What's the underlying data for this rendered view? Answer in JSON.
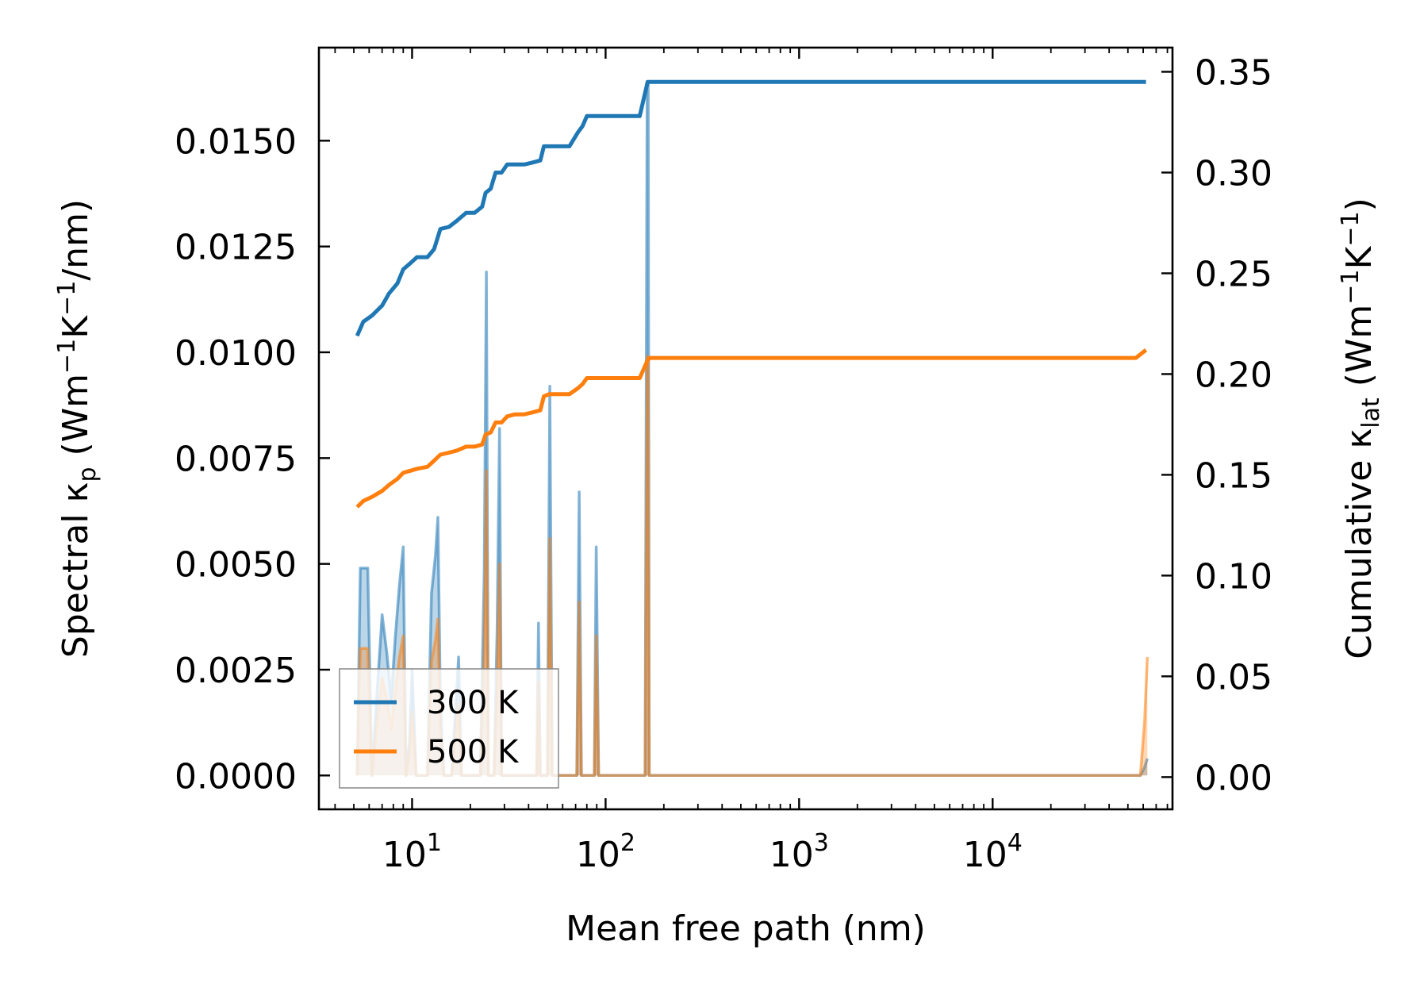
{
  "chart_data": {
    "type": "line",
    "xscale": "log",
    "xlabel": "Mean free path (nm)",
    "ylabel_left": {
      "base": "Spectral κ",
      "sub": "p",
      "unit_pre": " (Wm",
      "sup1": "−1",
      "unit_mid": "K",
      "sup2": "−1",
      "unit_post": "/nm)"
    },
    "ylabel_right": {
      "base": "Cumulative κ",
      "sub": "lat",
      "unit_pre": " (Wm",
      "sup1": "−1",
      "unit_mid": "K",
      "sup2": "−1",
      "unit_post": ")"
    },
    "xlim": [
      3.3,
      85000
    ],
    "ylim_left": [
      -0.0008,
      0.0172
    ],
    "ylim_right": [
      -0.016,
      0.362
    ],
    "x_ticks": [
      {
        "value": 10,
        "base": "10",
        "exp": "1"
      },
      {
        "value": 100,
        "base": "10",
        "exp": "2"
      },
      {
        "value": 1000,
        "base": "10",
        "exp": "3"
      },
      {
        "value": 10000,
        "base": "10",
        "exp": "4"
      }
    ],
    "y_ticks_left": [
      "0.0000",
      "0.0025",
      "0.0050",
      "0.0075",
      "0.0100",
      "0.0125",
      "0.0150"
    ],
    "y_ticks_right": [
      "0.00",
      "0.05",
      "0.10",
      "0.15",
      "0.20",
      "0.25",
      "0.30",
      "0.35"
    ],
    "legend": {
      "position": "lower-left",
      "entries": [
        "300 K",
        "500 K"
      ]
    },
    "colors": {
      "300 K": "#1f77b4",
      "500 K": "#ff7f0e"
    },
    "series": [
      {
        "name": "300 K",
        "axis": "right",
        "kind": "cumulative",
        "x": [
          5.2,
          5.6,
          6.2,
          7.0,
          7.6,
          8.4,
          9.0,
          9.8,
          10.6,
          12.0,
          13.0,
          14.0,
          15.5,
          17.0,
          19.0,
          21.0,
          23.0,
          24.0,
          25.5,
          27.0,
          29.0,
          31.0,
          34.0,
          38.0,
          42.0,
          46.0,
          48.0,
          51.0,
          54.0,
          58.0,
          65.0,
          72.0,
          76.0,
          80.0,
          88.0,
          95.0,
          120.0,
          150.0,
          165.0,
          170.0,
          180.0,
          1000.0,
          10000.0,
          55000.0,
          62000.0
        ],
        "y": [
          0.219,
          0.226,
          0.229,
          0.234,
          0.24,
          0.245,
          0.252,
          0.255,
          0.258,
          0.258,
          0.262,
          0.272,
          0.273,
          0.276,
          0.28,
          0.28,
          0.283,
          0.29,
          0.292,
          0.3,
          0.3,
          0.304,
          0.304,
          0.304,
          0.305,
          0.306,
          0.313,
          0.313,
          0.313,
          0.313,
          0.313,
          0.32,
          0.323,
          0.328,
          0.328,
          0.328,
          0.328,
          0.328,
          0.345,
          0.345,
          0.345,
          0.345,
          0.345,
          0.345,
          0.345
        ]
      },
      {
        "name": "500 K",
        "axis": "right",
        "kind": "cumulative",
        "x": [
          5.2,
          5.6,
          6.2,
          7.0,
          7.6,
          8.4,
          9.0,
          9.8,
          10.6,
          12.0,
          13.0,
          14.0,
          15.5,
          17.0,
          19.0,
          21.0,
          23.0,
          24.0,
          25.5,
          27.0,
          29.0,
          31.0,
          34.0,
          38.0,
          42.0,
          46.0,
          48.0,
          51.0,
          54.0,
          58.0,
          65.0,
          72.0,
          76.0,
          80.0,
          88.0,
          95.0,
          120.0,
          150.0,
          165.0,
          170.0,
          180.0,
          1000.0,
          10000.0,
          55000.0,
          62000.0
        ],
        "y": [
          0.134,
          0.137,
          0.139,
          0.142,
          0.145,
          0.148,
          0.151,
          0.152,
          0.153,
          0.154,
          0.157,
          0.16,
          0.161,
          0.162,
          0.164,
          0.164,
          0.165,
          0.17,
          0.171,
          0.176,
          0.176,
          0.179,
          0.18,
          0.18,
          0.181,
          0.182,
          0.189,
          0.19,
          0.19,
          0.19,
          0.19,
          0.193,
          0.195,
          0.198,
          0.198,
          0.198,
          0.198,
          0.198,
          0.207,
          0.208,
          0.208,
          0.208,
          0.208,
          0.208,
          0.212
        ]
      },
      {
        "name": "300 K",
        "axis": "left",
        "kind": "spectral",
        "x": [
          5.2,
          5.4,
          5.6,
          5.9,
          6.2,
          6.6,
          7.0,
          7.4,
          7.8,
          8.2,
          8.6,
          9.0,
          9.3,
          9.7,
          10.0,
          10.5,
          11.0,
          11.5,
          12.0,
          12.6,
          13.2,
          13.6,
          14.0,
          14.6,
          15.5,
          16.0,
          16.8,
          17.4,
          18.0,
          19.0,
          20.0,
          21.0,
          22.5,
          23.6,
          24.2,
          24.8,
          25.5,
          26.5,
          27.5,
          28.3,
          29.0,
          30.0,
          32.0,
          34.0,
          36.0,
          38.0,
          40.0,
          42.0,
          44.0,
          45.0,
          46.0,
          47.0,
          48.5,
          50.0,
          51.5,
          53.0,
          55.0,
          60.0,
          67.0,
          71.0,
          73.0,
          75.0,
          78.0,
          83.0,
          87.5,
          89.5,
          92.0,
          97.0,
          110.0,
          150.0,
          160.0,
          164.0,
          166.0,
          168.0,
          172.0,
          178.0,
          250.0,
          1000.0,
          10000.0,
          55000.0,
          58000.0,
          61000.0,
          63000.0
        ],
        "y": [
          0.0,
          0.0049,
          0.0049,
          0.0049,
          0.0,
          0.002,
          0.0038,
          0.0029,
          0.0018,
          0.0033,
          0.0045,
          0.0054,
          0.0,
          0.0008,
          0.0025,
          0.0,
          0.0,
          0.0,
          0.0,
          0.0043,
          0.0052,
          0.0061,
          0.0018,
          0.0,
          0.0,
          0.0,
          0.0016,
          0.0028,
          0.0,
          0.0,
          0.0,
          0.0,
          0.0,
          0.0048,
          0.0119,
          0.0,
          0.0,
          0.0,
          0.0034,
          0.0082,
          0.0,
          0.0,
          0.0,
          0.0,
          0.0,
          0.0,
          0.0,
          0.0,
          0.0,
          0.0036,
          0.0,
          0.0,
          0.0,
          0.0,
          0.0092,
          0.0,
          0.0,
          0.0,
          0.0,
          0.0,
          0.0067,
          0.0,
          0.0,
          0.0,
          0.0,
          0.0054,
          0.0,
          0.0,
          0.0,
          0.0,
          0.0,
          0.0164,
          0.0164,
          0.0,
          0.0,
          0.0,
          0.0,
          0.0,
          0.0,
          0.0,
          0.0,
          0.0002,
          0.0004
        ]
      },
      {
        "name": "500 K",
        "axis": "left",
        "kind": "spectral",
        "x": [
          5.2,
          5.4,
          5.6,
          5.9,
          6.2,
          6.6,
          7.0,
          7.4,
          7.8,
          8.2,
          8.6,
          9.0,
          9.3,
          9.7,
          10.0,
          10.5,
          11.0,
          11.5,
          12.0,
          12.6,
          13.2,
          13.6,
          14.0,
          14.6,
          15.5,
          16.0,
          16.8,
          17.4,
          18.0,
          19.0,
          20.0,
          21.0,
          22.5,
          23.6,
          24.2,
          24.8,
          25.5,
          26.5,
          27.5,
          28.3,
          29.0,
          30.0,
          32.0,
          34.0,
          36.0,
          38.0,
          40.0,
          42.0,
          44.0,
          45.0,
          46.0,
          47.0,
          48.5,
          50.0,
          51.5,
          53.0,
          55.0,
          60.0,
          67.0,
          71.0,
          73.0,
          75.0,
          78.0,
          83.0,
          87.5,
          89.5,
          92.0,
          97.0,
          110.0,
          150.0,
          160.0,
          164.0,
          166.0,
          168.0,
          172.0,
          178.0,
          250.0,
          1000.0,
          10000.0,
          55000.0,
          58000.0,
          61000.0,
          63000.0
        ],
        "y": [
          0.0,
          0.003,
          0.003,
          0.003,
          0.0,
          0.0012,
          0.0023,
          0.0018,
          0.0011,
          0.002,
          0.0028,
          0.0033,
          0.0,
          0.0005,
          0.0015,
          0.0,
          0.0,
          0.0,
          0.0,
          0.0027,
          0.0032,
          0.0037,
          0.0011,
          0.0,
          0.0,
          0.0,
          0.001,
          0.0017,
          0.0,
          0.0,
          0.0,
          0.0,
          0.0,
          0.0029,
          0.0072,
          0.0,
          0.0,
          0.0,
          0.002,
          0.005,
          0.0,
          0.0,
          0.0,
          0.0,
          0.0,
          0.0,
          0.0,
          0.0,
          0.0,
          0.0022,
          0.0,
          0.0,
          0.0,
          0.0,
          0.0056,
          0.0,
          0.0,
          0.0,
          0.0,
          0.0,
          0.0041,
          0.0,
          0.0,
          0.0,
          0.0,
          0.0033,
          0.0,
          0.0,
          0.0,
          0.0,
          0.0,
          0.0099,
          0.0099,
          0.0,
          0.0,
          0.0,
          0.0,
          0.0,
          0.0,
          0.0,
          0.0,
          0.0013,
          0.0028
        ]
      }
    ]
  }
}
